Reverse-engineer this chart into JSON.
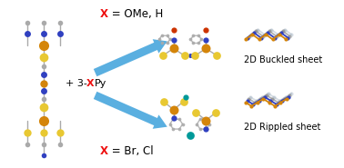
{
  "background_color": "#ffffff",
  "figsize": [
    3.78,
    1.85
  ],
  "dpi": 100,
  "cu_color": "#d4850a",
  "s_color": "#e8c832",
  "n_color": "#3040c0",
  "c_color": "#aaaaaa",
  "red_color": "#ee1111",
  "arrow_color": "#5aafe0",
  "label_top": "= OMe, H",
  "label_bot": "= Br, Cl",
  "plus_label": "+ 3-",
  "py_label": "Py",
  "buckled_label": "2D Buckled sheet",
  "rippled_label": "2D Rippled sheet",
  "buckled_sheet": {
    "lines": [
      {
        "color": "#d4850a",
        "alpha": 1.0,
        "lw": 1.5,
        "x": [
          0,
          0.04,
          0.08,
          0.12,
          0.16,
          0.2,
          0.24
        ],
        "y": [
          0.02,
          0.06,
          0.01,
          0.06,
          0.01,
          0.06,
          0.02
        ]
      },
      {
        "color": "#3040c0",
        "alpha": 1.0,
        "lw": 1.5,
        "x": [
          0,
          0.04,
          0.08,
          0.12,
          0.16,
          0.2,
          0.24
        ],
        "y": [
          0.04,
          0.08,
          0.03,
          0.08,
          0.03,
          0.08,
          0.04
        ]
      },
      {
        "color": "#888888",
        "alpha": 0.7,
        "lw": 1.2,
        "x": [
          0,
          0.04,
          0.08,
          0.12,
          0.16,
          0.2,
          0.24
        ],
        "y": [
          0.06,
          0.1,
          0.05,
          0.1,
          0.05,
          0.1,
          0.06
        ]
      },
      {
        "color": "#aabbee",
        "alpha": 0.5,
        "lw": 1.0,
        "x": [
          0,
          0.04,
          0.08,
          0.12,
          0.16,
          0.2,
          0.24
        ],
        "y": [
          0.08,
          0.12,
          0.07,
          0.12,
          0.07,
          0.12,
          0.08
        ]
      }
    ]
  },
  "rippled_sheet": {
    "lines": [
      {
        "color": "#d4850a",
        "alpha": 1.0,
        "lw": 1.5,
        "x": [
          0,
          0.035,
          0.07,
          0.105,
          0.14,
          0.175,
          0.21,
          0.245
        ],
        "y": [
          0.05,
          0.0,
          0.05,
          0.1,
          0.05,
          0.0,
          0.05,
          0.1
        ]
      },
      {
        "color": "#3040c0",
        "alpha": 1.0,
        "lw": 1.5,
        "x": [
          0,
          0.035,
          0.07,
          0.105,
          0.14,
          0.175,
          0.21,
          0.245
        ],
        "y": [
          0.07,
          0.02,
          0.07,
          0.12,
          0.07,
          0.02,
          0.07,
          0.12
        ]
      },
      {
        "color": "#888888",
        "alpha": 0.7,
        "lw": 1.2,
        "x": [
          0,
          0.035,
          0.07,
          0.105,
          0.14,
          0.175,
          0.21,
          0.245
        ],
        "y": [
          0.09,
          0.04,
          0.09,
          0.14,
          0.09,
          0.04,
          0.09,
          0.14
        ]
      },
      {
        "color": "#aabbee",
        "alpha": 0.5,
        "lw": 1.0,
        "x": [
          0,
          0.035,
          0.07,
          0.105,
          0.14,
          0.175,
          0.21,
          0.245
        ],
        "y": [
          0.11,
          0.06,
          0.11,
          0.16,
          0.11,
          0.06,
          0.11,
          0.16
        ]
      }
    ]
  }
}
